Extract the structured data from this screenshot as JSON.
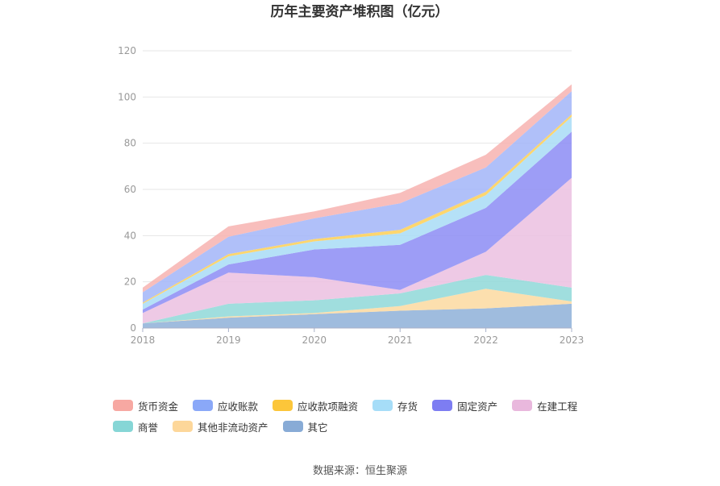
{
  "chart_data": {
    "type": "area",
    "stacked": true,
    "title": "历年主要资产堆积图（亿元）",
    "categories": [
      "2018",
      "2019",
      "2020",
      "2021",
      "2022",
      "2023"
    ],
    "ylim": [
      0,
      120
    ],
    "yticks": [
      0,
      20,
      40,
      60,
      80,
      100,
      120
    ],
    "grid": true,
    "legend_position": "bottom",
    "series": [
      {
        "name": "其它",
        "color": "#8eb0d8",
        "values": [
          2,
          4.5,
          6,
          7.5,
          8.5,
          10.5
        ]
      },
      {
        "name": "其他非流动资产",
        "color": "#fcd9a0",
        "values": [
          0,
          0.5,
          0.5,
          2,
          8.5,
          1
        ]
      },
      {
        "name": "商誉",
        "color": "#8fd8d8",
        "values": [
          0,
          5.5,
          5.5,
          5.5,
          6,
          6
        ]
      },
      {
        "name": "在建工程",
        "color": "#ebbfe0",
        "values": [
          4.5,
          13.5,
          10,
          1.5,
          10,
          47.5
        ]
      },
      {
        "name": "固定资产",
        "color": "#8c8cf5",
        "values": [
          1.5,
          3.5,
          12,
          19.5,
          19,
          20
        ]
      },
      {
        "name": "存货",
        "color": "#a8dcf6",
        "values": [
          2.5,
          3.5,
          3.5,
          5,
          5.5,
          6.5
        ]
      },
      {
        "name": "应收款项融资",
        "color": "#fdcf55",
        "values": [
          0.5,
          1,
          1,
          1.5,
          1.5,
          1
        ]
      },
      {
        "name": "应收账款",
        "color": "#a2b5f8",
        "values": [
          4.5,
          7.5,
          9,
          11.5,
          10.5,
          10
        ]
      },
      {
        "name": "货币资金",
        "color": "#f7b3b0",
        "values": [
          2,
          4.5,
          3,
          4.5,
          5.5,
          3
        ]
      }
    ]
  },
  "legend": {
    "items": [
      {
        "label": "货币资金",
        "color": "#f7a8a2"
      },
      {
        "label": "应收账款",
        "color": "#8aa8f8"
      },
      {
        "label": "应收款项融资",
        "color": "#fcc63a"
      },
      {
        "label": "存货",
        "color": "#a6ddf8"
      },
      {
        "label": "固定资产",
        "color": "#7d7df2"
      },
      {
        "label": "在建工程",
        "color": "#e9b8dd"
      },
      {
        "label": "商誉",
        "color": "#86d6d6"
      },
      {
        "label": "其他非流动资产",
        "color": "#fdd79a"
      },
      {
        "label": "其它",
        "color": "#88abd6"
      }
    ]
  },
  "source": {
    "text": "数据来源：恒生聚源"
  }
}
